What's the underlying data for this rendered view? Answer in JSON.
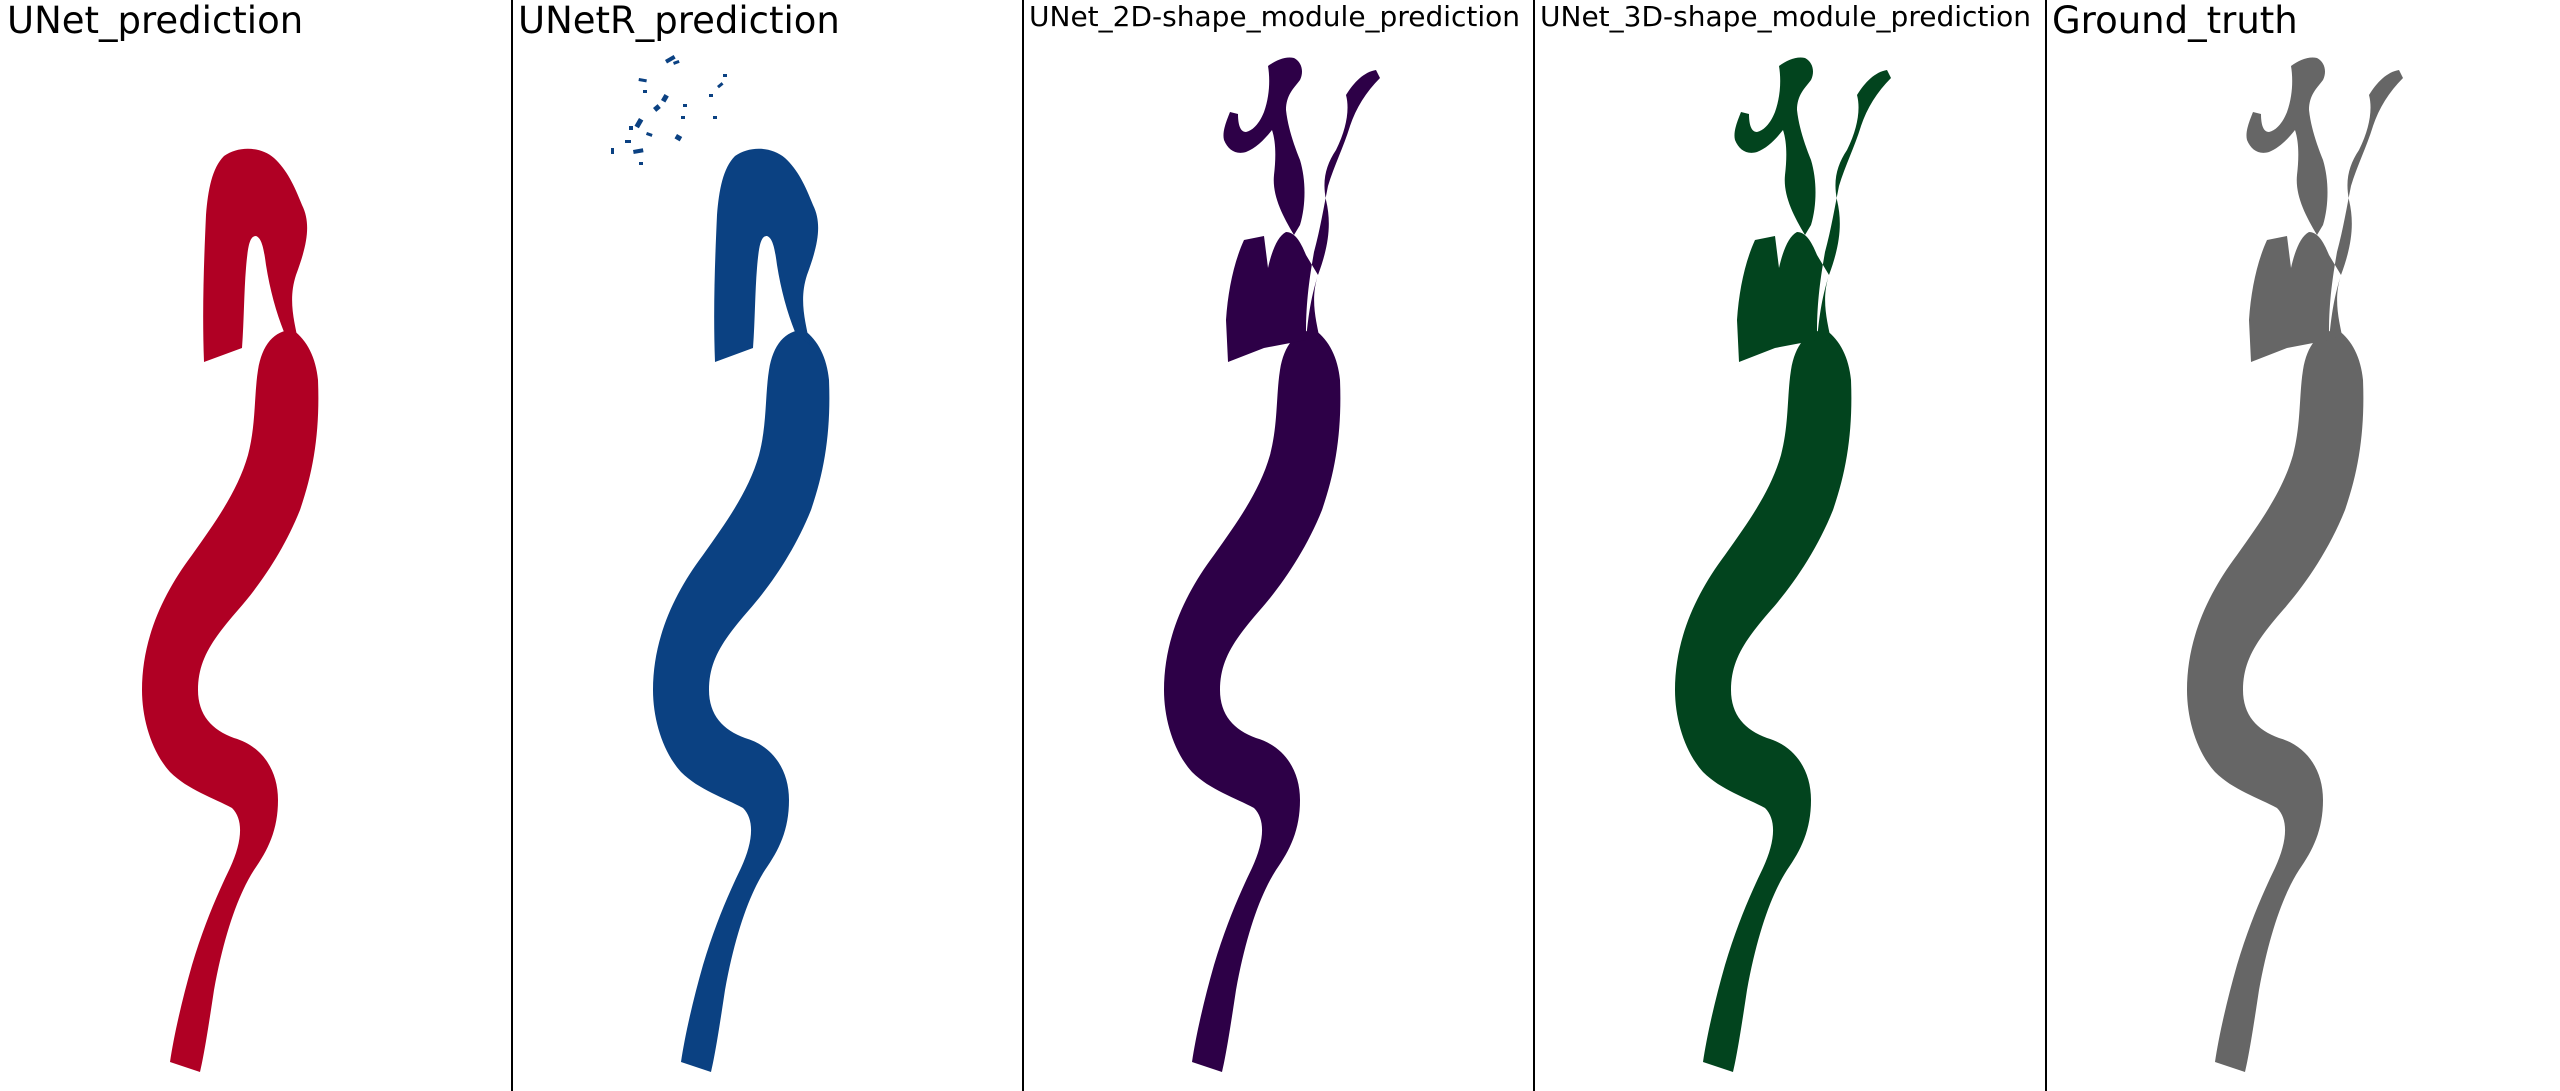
{
  "panels": [
    {
      "title": "UNet_prediction",
      "color": "#b00024",
      "variant": "unet"
    },
    {
      "title": "UNetR_prediction",
      "color": "#0b4182",
      "variant": "unetr"
    },
    {
      "title": "UNet_2D-shape_module_prediction",
      "color": "#2d0047",
      "variant": "full"
    },
    {
      "title": "UNet_3D-shape_module_prediction",
      "color": "#02441e",
      "variant": "full"
    },
    {
      "title": "Ground_truth",
      "color": "#666666",
      "variant": "full"
    }
  ]
}
